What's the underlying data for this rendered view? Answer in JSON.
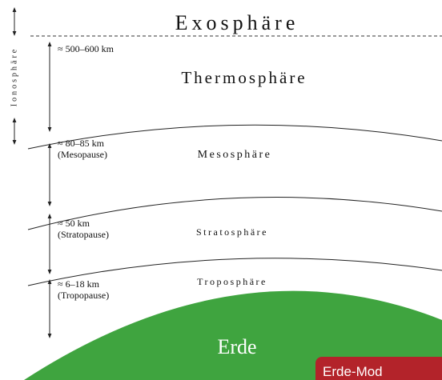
{
  "layers": {
    "exosphere": "Exosphäre",
    "thermosphere": "Thermosphäre",
    "mesosphere": "Mesosphäre",
    "stratosphere": "Stratosphäre",
    "troposphere": "Troposphäre",
    "earth": "Erde"
  },
  "boundaries": [
    {
      "height": "≈ 500–600 km"
    },
    {
      "height": "≈ 80–85 km",
      "name": "(Mesopause)"
    },
    {
      "height": "≈ 50 km",
      "name": "(Stratopause)"
    },
    {
      "height": "≈ 6–18 km",
      "name": "(Tropopause)"
    }
  ],
  "ionosphere": "Ionosphäre",
  "tab": "Erde-Mod"
}
